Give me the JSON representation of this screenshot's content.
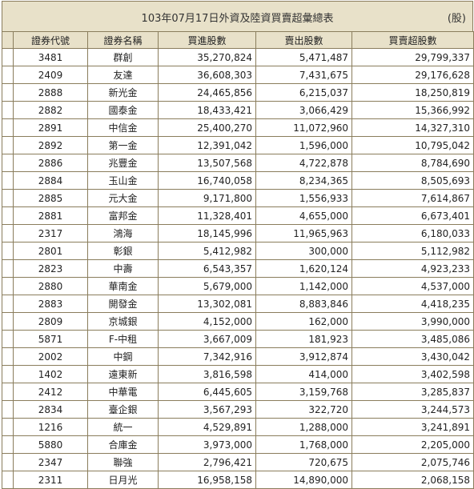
{
  "title": "103年07月17日外資及陸資買賣超彙總表",
  "unit": "(股)",
  "headers": [
    "證券代號",
    "證券名稱",
    "買進股數",
    "賣出股數",
    "買賣超股數"
  ],
  "rows": [
    {
      "code": "3481",
      "name": "群創",
      "buy": "35,270,824",
      "sell": "5,471,487",
      "net": "29,799,337"
    },
    {
      "code": "2409",
      "name": "友達",
      "buy": "36,608,303",
      "sell": "7,431,675",
      "net": "29,176,628"
    },
    {
      "code": "2888",
      "name": "新光金",
      "buy": "24,465,856",
      "sell": "6,215,037",
      "net": "18,250,819"
    },
    {
      "code": "2882",
      "name": "國泰金",
      "buy": "18,433,421",
      "sell": "3,066,429",
      "net": "15,366,992"
    },
    {
      "code": "2891",
      "name": "中信金",
      "buy": "25,400,270",
      "sell": "11,072,960",
      "net": "14,327,310"
    },
    {
      "code": "2892",
      "name": "第一金",
      "buy": "12,391,042",
      "sell": "1,596,000",
      "net": "10,795,042"
    },
    {
      "code": "2886",
      "name": "兆豐金",
      "buy": "13,507,568",
      "sell": "4,722,878",
      "net": "8,784,690"
    },
    {
      "code": "2884",
      "name": "玉山金",
      "buy": "16,740,058",
      "sell": "8,234,365",
      "net": "8,505,693"
    },
    {
      "code": "2885",
      "name": "元大金",
      "buy": "9,171,800",
      "sell": "1,556,933",
      "net": "7,614,867"
    },
    {
      "code": "2881",
      "name": "富邦金",
      "buy": "11,328,401",
      "sell": "4,655,000",
      "net": "6,673,401"
    },
    {
      "code": "2317",
      "name": "鴻海",
      "buy": "18,145,996",
      "sell": "11,965,963",
      "net": "6,180,033"
    },
    {
      "code": "2801",
      "name": "彰銀",
      "buy": "5,412,982",
      "sell": "300,000",
      "net": "5,112,982"
    },
    {
      "code": "2823",
      "name": "中壽",
      "buy": "6,543,357",
      "sell": "1,620,124",
      "net": "4,923,233"
    },
    {
      "code": "2880",
      "name": "華南金",
      "buy": "5,679,000",
      "sell": "1,142,000",
      "net": "4,537,000"
    },
    {
      "code": "2883",
      "name": "開發金",
      "buy": "13,302,081",
      "sell": "8,883,846",
      "net": "4,418,235"
    },
    {
      "code": "2809",
      "name": "京城銀",
      "buy": "4,152,000",
      "sell": "162,000",
      "net": "3,990,000"
    },
    {
      "code": "5871",
      "name": "F-中租",
      "buy": "3,667,009",
      "sell": "181,923",
      "net": "3,485,086"
    },
    {
      "code": "2002",
      "name": "中鋼",
      "buy": "7,342,916",
      "sell": "3,912,874",
      "net": "3,430,042"
    },
    {
      "code": "1402",
      "name": "遠東新",
      "buy": "3,816,598",
      "sell": "414,000",
      "net": "3,402,598"
    },
    {
      "code": "2412",
      "name": "中華電",
      "buy": "6,445,605",
      "sell": "3,159,768",
      "net": "3,285,837"
    },
    {
      "code": "2834",
      "name": "臺企銀",
      "buy": "3,567,293",
      "sell": "322,720",
      "net": "3,244,573"
    },
    {
      "code": "1216",
      "name": "統一",
      "buy": "4,529,891",
      "sell": "1,288,000",
      "net": "3,241,891"
    },
    {
      "code": "5880",
      "name": "合庫金",
      "buy": "3,973,000",
      "sell": "1,768,000",
      "net": "2,205,000"
    },
    {
      "code": "2347",
      "name": "聯強",
      "buy": "2,796,421",
      "sell": "720,675",
      "net": "2,075,746"
    },
    {
      "code": "2311",
      "name": "日月光",
      "buy": "16,958,158",
      "sell": "14,890,000",
      "net": "2,068,158"
    }
  ]
}
